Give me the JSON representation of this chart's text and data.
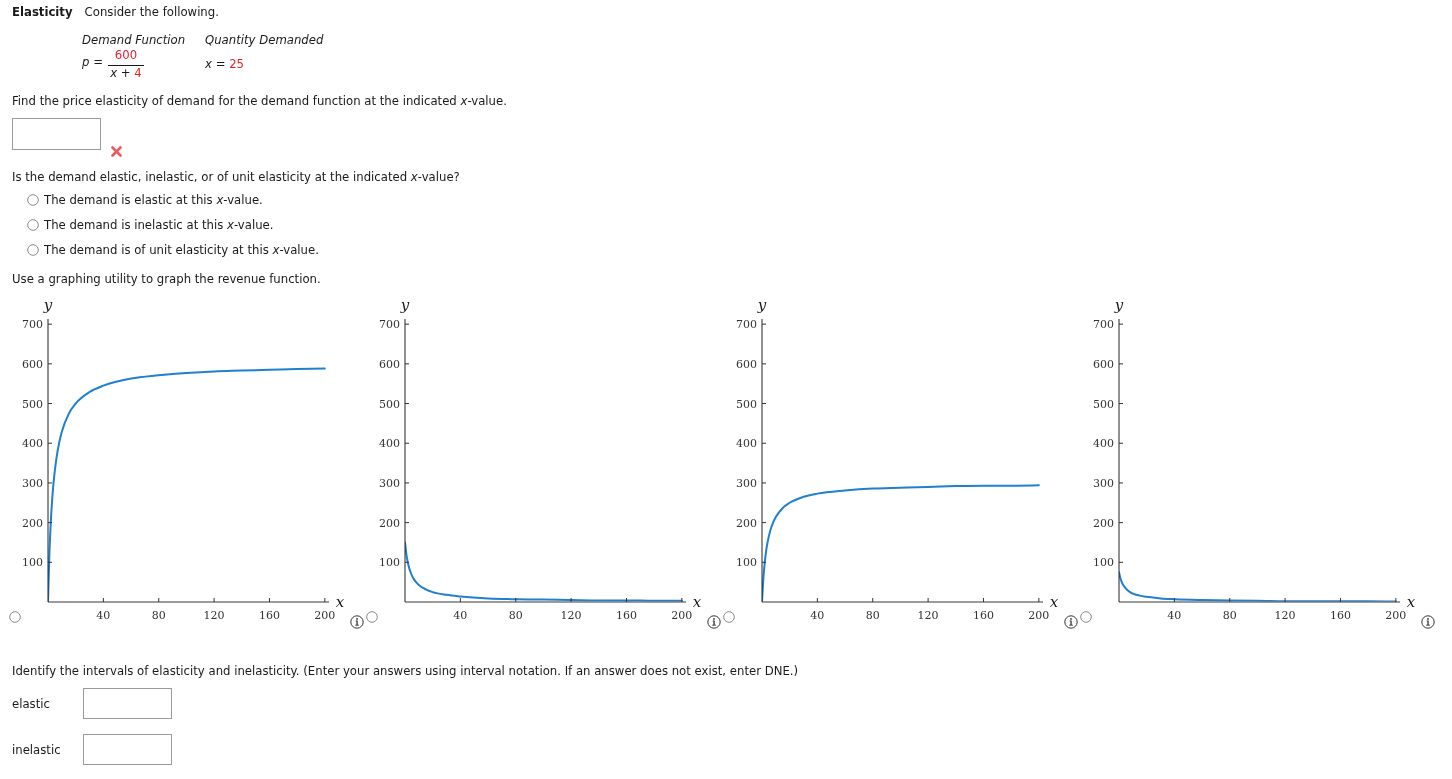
{
  "chart_data": [
    {
      "type": "line",
      "title": "Elasticity",
      "subtitle": "Consider the following.",
      "annotations": [
        "Demand Function",
        "Quantity Demanded",
        "p =",
        "600",
        "x + 4",
        "x = 25",
        "Find the price elasticity of demand for the demand function at the indicated x-value.",
        "Is the demand elastic, inelastic, or of unit elasticity at the indicated x-value?",
        "The demand is elastic at this x-value.",
        "The demand is inelastic at this x-value.",
        "The demand is of unit elasticity at this x-value.",
        "Use a graphing utility to graph the revenue function."
      ],
      "xlabel": "x",
      "ylabel": "y",
      "x": [
        0,
        1,
        2,
        3,
        4,
        6,
        8,
        10,
        15,
        20,
        30,
        40,
        60,
        80,
        100,
        120,
        140,
        160,
        180,
        200
      ],
      "series": [
        {
          "color": "#1f7fd1",
          "values": [
            0,
            120,
            200,
            257,
            300,
            360,
            400,
            429,
            474,
            500,
            529,
            545,
            563,
            571,
            577,
            581,
            583,
            585,
            587,
            588
          ]
        }
      ],
      "xlim": [
        0,
        203
      ],
      "ylim": [
        0,
        713
      ],
      "xticks": [
        40,
        80,
        120,
        160,
        200
      ],
      "yticks": [
        100,
        200,
        300,
        400,
        500,
        600,
        700
      ],
      "marker": "none"
    },
    {
      "type": "line",
      "xlabel": "x",
      "ylabel": "y",
      "x": [
        0,
        1,
        2,
        3,
        4,
        6,
        8,
        10,
        15,
        20,
        30,
        40,
        60,
        80,
        100,
        120,
        140,
        160,
        180,
        200
      ],
      "series": [
        {
          "color": "#1f7fd1",
          "values": [
            150,
            120,
            100,
            86,
            75,
            60,
            50,
            43,
            32,
            25,
            18,
            14,
            9,
            7,
            6,
            5,
            4,
            4,
            3,
            3
          ]
        }
      ],
      "xlim": [
        0,
        203
      ],
      "ylim": [
        0,
        713
      ],
      "xticks": [
        40,
        80,
        120,
        160,
        200
      ],
      "yticks": [
        100,
        200,
        300,
        400,
        500,
        600,
        700
      ],
      "marker": "none"
    },
    {
      "type": "line",
      "xlabel": "x",
      "ylabel": "y",
      "x": [
        0,
        1,
        2,
        3,
        4,
        6,
        8,
        10,
        15,
        20,
        30,
        40,
        60,
        80,
        100,
        120,
        140,
        160,
        180,
        200
      ],
      "series": [
        {
          "color": "#1f7fd1",
          "values": [
            0,
            60,
            100,
            129,
            150,
            180,
            200,
            214,
            237,
            250,
            265,
            273,
            281,
            286,
            288,
            290,
            292,
            293,
            293,
            294
          ]
        }
      ],
      "xlim": [
        0,
        203
      ],
      "ylim": [
        0,
        713
      ],
      "xticks": [
        40,
        80,
        120,
        160,
        200
      ],
      "yticks": [
        100,
        200,
        300,
        400,
        500,
        600,
        700
      ],
      "marker": "none"
    },
    {
      "type": "line",
      "annotations": [
        "Identify the intervals of elasticity and inelasticity. (Enter your answers using interval notation. If an answer does not exist, enter DNE.)",
        "elastic",
        "inelastic"
      ],
      "xlabel": "x",
      "ylabel": "y",
      "x": [
        0,
        1,
        2,
        3,
        4,
        6,
        8,
        10,
        15,
        20,
        30,
        40,
        60,
        80,
        100,
        120,
        140,
        160,
        180,
        200
      ],
      "series": [
        {
          "color": "#1f7fd1",
          "values": [
            75,
            60,
            50,
            43,
            38,
            30,
            25,
            21,
            16,
            13,
            9,
            7,
            5,
            4,
            3,
            2,
            2,
            2,
            2,
            1
          ]
        }
      ],
      "xlim": [
        0,
        203
      ],
      "ylim": [
        0,
        713
      ],
      "xticks": [
        40,
        80,
        120,
        160,
        200
      ],
      "yticks": [
        100,
        200,
        300,
        400,
        500,
        600,
        700
      ],
      "marker": "none"
    }
  ]
}
